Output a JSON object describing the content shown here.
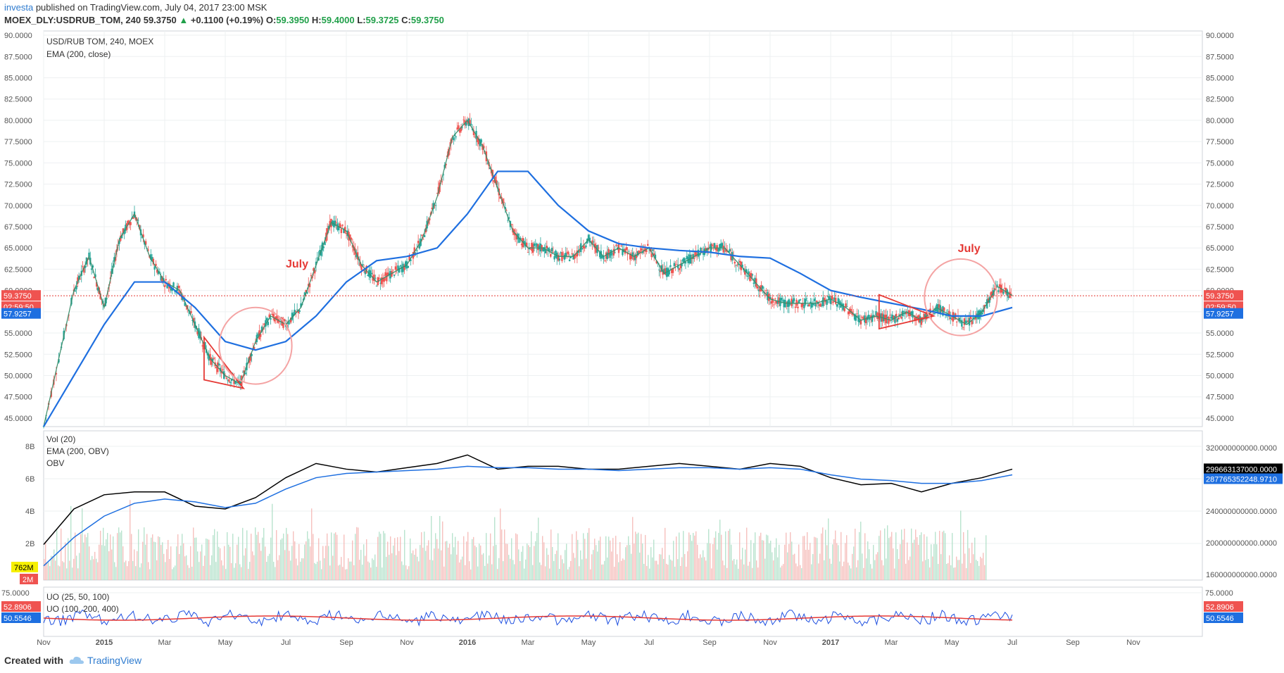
{
  "header": {
    "author": "investa",
    "published_text": "published on TradingView.com, July 04, 2017 23:00 MSK",
    "symbol": "MOEX_DLY:USDRUB_TOM, 240",
    "last": "59.3750",
    "change": "+0.1100 (+0.19%)",
    "o_label": "O:",
    "o": "59.3950",
    "h_label": "H:",
    "h": "59.4000",
    "l_label": "L:",
    "l": "59.3725",
    "c_label": "C:",
    "c": "59.3750"
  },
  "footer": {
    "created_with": "Created with",
    "brand": "TradingView"
  },
  "colors": {
    "up": "#26a69a",
    "down": "#ef5350",
    "ema": "#1e6fe0",
    "obv": "#000000",
    "annotation": "#e53935",
    "circle": "#f4a3a3",
    "uo": "#1e4fe0",
    "uo_ma": "#e53935"
  },
  "chart_data": {
    "type": "line",
    "main": {
      "title": "USD/RUB TOM, 240, MOEX",
      "indicator": "EMA (200, close)",
      "ylim": [
        44.0,
        90.5
      ],
      "y_ticks": [
        "90.0000",
        "87.5000",
        "85.0000",
        "82.5000",
        "80.0000",
        "77.5000",
        "75.0000",
        "72.5000",
        "70.0000",
        "67.5000",
        "65.0000",
        "62.5000",
        "60.0000",
        "57.5000",
        "55.0000",
        "52.5000",
        "50.0000",
        "47.5000",
        "45.0000"
      ],
      "x_tick_labels": [
        "Nov",
        "2015",
        "Mar",
        "May",
        "Jul",
        "Sep",
        "Nov",
        "2016",
        "Mar",
        "May",
        "Jul",
        "Sep",
        "Nov",
        "2017",
        "Mar",
        "May",
        "Jul",
        "Sep",
        "Nov"
      ],
      "x_tick_index": [
        0,
        2,
        4,
        6,
        8,
        10,
        12,
        14,
        16,
        18,
        20,
        22,
        24,
        26,
        28,
        30,
        32,
        34,
        36
      ],
      "x_month_range": [
        0,
        32
      ],
      "price_x": [
        0,
        1,
        1.5,
        2,
        2.5,
        3,
        3.5,
        4,
        4.5,
        5,
        5.5,
        6,
        6.5,
        7,
        7.5,
        8,
        8.5,
        9,
        9.5,
        10,
        10.5,
        11,
        11.5,
        12,
        12.5,
        13,
        13.5,
        14,
        14.5,
        15,
        15.5,
        16,
        16.5,
        17,
        17.5,
        18,
        18.5,
        19,
        19.5,
        20,
        20.5,
        21,
        21.5,
        22,
        22.5,
        23,
        23.5,
        24,
        24.5,
        25,
        25.5,
        26,
        26.5,
        27,
        27.5,
        28,
        28.5,
        29,
        29.5,
        30,
        30.5,
        31,
        31.5,
        32
      ],
      "price_y": [
        44,
        60,
        64,
        58,
        66,
        69,
        64,
        61,
        60,
        56,
        52,
        50,
        49,
        54,
        57,
        56,
        58,
        63,
        68,
        67,
        63,
        61,
        62,
        63,
        66,
        71,
        78,
        80,
        77,
        72,
        67,
        65,
        65,
        64,
        64,
        66,
        64,
        65,
        64,
        65,
        62,
        63,
        64,
        65,
        65,
        63,
        61,
        59,
        58.5,
        58.5,
        58.5,
        59,
        58,
        56.5,
        57,
        56.5,
        57.5,
        56.5,
        58,
        57,
        56,
        57.5,
        60.5,
        59.4
      ],
      "ema_x": [
        0,
        1,
        2,
        3,
        4,
        5,
        6,
        7,
        8,
        9,
        10,
        11,
        12,
        13,
        14,
        15,
        16,
        17,
        18,
        19,
        20,
        21,
        22,
        23,
        24,
        25,
        26,
        27,
        28,
        29,
        30,
        31,
        32
      ],
      "ema_y": [
        44,
        50,
        56,
        61,
        61,
        58,
        54,
        53,
        54,
        57,
        61,
        63.5,
        64,
        65,
        69,
        74,
        74,
        70,
        67,
        65.5,
        65,
        64.7,
        64.5,
        64,
        63.8,
        62,
        60,
        59.2,
        58.5,
        57.8,
        57,
        57,
        58
      ],
      "last_price_label": "59.3750",
      "countdown_label": "02:59:50",
      "ema_label": "57.9257",
      "annotations": [
        {
          "type": "text",
          "text": "July",
          "x": 8,
          "y": 62.7
        },
        {
          "type": "text",
          "text": "July",
          "x": 30.2,
          "y": 64.5
        },
        {
          "type": "triangle",
          "points": [
            [
              5.3,
              54.5
            ],
            [
              5.3,
              49.5
            ],
            [
              6.6,
              48.5
            ]
          ]
        },
        {
          "type": "triangle",
          "points": [
            [
              27.6,
              59.5
            ],
            [
              27.6,
              55.5
            ],
            [
              29.4,
              57
            ]
          ]
        },
        {
          "type": "circle",
          "cx": 7,
          "cy": 53.5,
          "rx": 1.2,
          "ry": 4.5
        },
        {
          "type": "circle",
          "cx": 30.3,
          "cy": 59.2,
          "rx": 1.2,
          "ry": 4.5
        }
      ]
    },
    "volume": {
      "label": "Vol (20)",
      "indicator": "EMA (200, OBV)",
      "obv_label": "OBV",
      "left_ticks": [
        "8B",
        "6B",
        "4B",
        "2B"
      ],
      "right_ticks": [
        "320000000000.0000",
        "280000000000.0000",
        "240000000000.0000",
        "200000000000.0000",
        "160000000000.0000"
      ],
      "obv_x": [
        0,
        1,
        2,
        3,
        4,
        5,
        6,
        7,
        8,
        9,
        10,
        11,
        12,
        13,
        14,
        15,
        16,
        17,
        18,
        19,
        20,
        21,
        22,
        23,
        24,
        25,
        26,
        27,
        28,
        29,
        30,
        31,
        32
      ],
      "obv_y": [
        0.25,
        0.5,
        0.6,
        0.62,
        0.62,
        0.52,
        0.5,
        0.58,
        0.72,
        0.82,
        0.78,
        0.76,
        0.79,
        0.82,
        0.88,
        0.78,
        0.8,
        0.8,
        0.78,
        0.78,
        0.8,
        0.82,
        0.8,
        0.78,
        0.82,
        0.8,
        0.72,
        0.67,
        0.68,
        0.62,
        0.68,
        0.72,
        0.78
      ],
      "obv_ema_y": [
        0.1,
        0.3,
        0.45,
        0.54,
        0.57,
        0.55,
        0.51,
        0.54,
        0.64,
        0.72,
        0.75,
        0.76,
        0.77,
        0.78,
        0.8,
        0.79,
        0.79,
        0.78,
        0.78,
        0.77,
        0.78,
        0.79,
        0.79,
        0.78,
        0.79,
        0.78,
        0.74,
        0.71,
        0.7,
        0.68,
        0.68,
        0.7,
        0.74
      ],
      "obv_value_label": "299663137000.0000",
      "obv_ema_value_label": "287765352248.9710",
      "vol_label": "762M",
      "vol_label2": "2M"
    },
    "oscillator": {
      "label": "UO (25, 50, 100)",
      "label2": "UO (100, 200, 400)",
      "left_tick": "75.0000",
      "right_tick": "75.0000",
      "value_label": "52.8906",
      "value_label2": "50.5546"
    }
  }
}
